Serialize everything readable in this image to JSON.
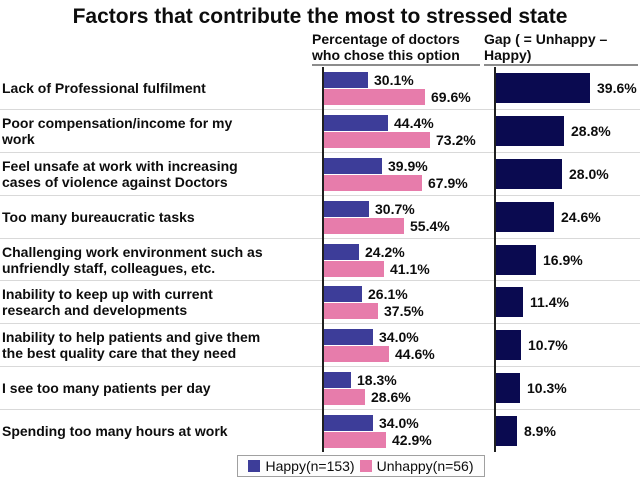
{
  "title": "Factors that contribute the most to stressed state",
  "headers": {
    "mid": "Percentage of doctors\nwho chose this option",
    "gap": "Gap ( = Unhappy –\nHappy)"
  },
  "legend": {
    "happy": "Happy(n=153)",
    "unhappy": "Unhappy(n=56)"
  },
  "colors": {
    "happy": "#3D3D99",
    "unhappy": "#E77CAB",
    "gap": "#0A0A50",
    "gridline": "#D9D9D9",
    "axis": "#202020",
    "header_underline": "#8C8C8C"
  },
  "chart_data": {
    "type": "bar",
    "orientation": "horizontal",
    "title": "Factors that contribute the most to stressed state",
    "xlabel": "Percentage of doctors who chose this option",
    "grid": "horizontal-separators",
    "legend_position": "bottom",
    "categories": [
      "Lack of Professional fulfilment",
      "Poor compensation/income for my\nwork",
      "Feel unsafe at work with increasing\ncases of violence against Doctors",
      "Too many bureaucratic tasks",
      "Challenging work environment such as\nunfriendly staff, colleagues, etc.",
      "Inability to keep up with current\nresearch and developments",
      "Inability to help patients and give them\nthe best quality care that they need",
      "I see too many patients per day",
      "Spending too many hours at work"
    ],
    "series": [
      {
        "name": "Happy(n=153)",
        "values": [
          30.1,
          44.4,
          39.9,
          30.7,
          24.2,
          26.1,
          34.0,
          18.3,
          34.0
        ]
      },
      {
        "name": "Unhappy(n=56)",
        "values": [
          69.6,
          73.2,
          67.9,
          55.4,
          41.1,
          37.5,
          44.6,
          28.6,
          42.9
        ]
      },
      {
        "name": "Gap ( = Unhappy – Happy)",
        "values": [
          39.6,
          28.8,
          28.0,
          24.6,
          16.9,
          11.4,
          10.7,
          10.3,
          8.9
        ]
      }
    ],
    "value_suffix": "%"
  }
}
